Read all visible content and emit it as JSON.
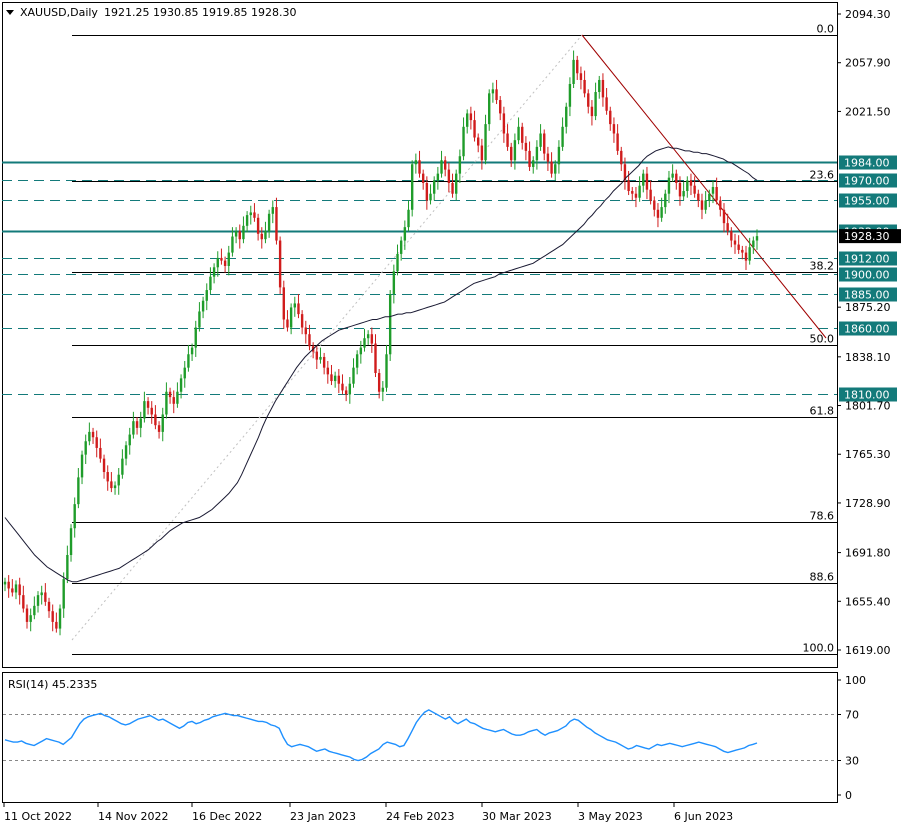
{
  "chart_data": {
    "type": "candlestick",
    "header": {
      "symbol_timeframe": "XAUUSD,Daily",
      "ohlc": "1921.25 1930.85 1919.85 1928.30"
    },
    "price_axis": {
      "ylim": [
        1600,
        2105
      ],
      "ticks": [
        "2094.30",
        "2057.90",
        "2021.50",
        "1875.20",
        "1838.10",
        "1801.70",
        "1765.30",
        "1728.90",
        "1691.80",
        "1655.40",
        "1619.00"
      ]
    },
    "x_axis": {
      "ticks": [
        "11 Oct 2022",
        "14 Nov 2022",
        "16 Dec 2022",
        "23 Jan 2023",
        "24 Feb 2023",
        "30 Mar 2023",
        "3 May 2023",
        "6 Jun 2023"
      ]
    },
    "fibonacci": [
      {
        "label": "0.0",
        "price": 2078.5
      },
      {
        "label": "23.6",
        "price": 1969.2
      },
      {
        "label": "38.2",
        "price": 1901.8
      },
      {
        "label": "50.0",
        "price": 1847.3
      },
      {
        "label": "61.8",
        "price": 1792.8
      },
      {
        "label": "78.6",
        "price": 1715.0
      },
      {
        "label": "88.6",
        "price": 1668.8
      },
      {
        "label": "100.0",
        "price": 1616.2
      }
    ],
    "levels": [
      {
        "label": "1984.00",
        "price": 1984.0,
        "style": "solid"
      },
      {
        "label": "1970.00",
        "price": 1970.0,
        "style": "dashed"
      },
      {
        "label": "1955.00",
        "price": 1955.0,
        "style": "dashed"
      },
      {
        "label": "1932.00",
        "price": 1932.0,
        "style": "solid"
      },
      {
        "label": "1912.00",
        "price": 1912.0,
        "style": "dashed"
      },
      {
        "label": "1900.00",
        "price": 1900.0,
        "style": "dashed"
      },
      {
        "label": "1885.00",
        "price": 1885.0,
        "style": "dashed"
      },
      {
        "label": "1860.00",
        "price": 1860.0,
        "style": "dashed"
      },
      {
        "label": "1810.00",
        "price": 1810.0,
        "style": "dashed"
      }
    ],
    "current_price": "1928.30",
    "close_series": [
      1670,
      1665,
      1662,
      1668,
      1660,
      1650,
      1640,
      1645,
      1652,
      1660,
      1662,
      1655,
      1648,
      1640,
      1635,
      1650,
      1672,
      1690,
      1710,
      1728,
      1748,
      1765,
      1775,
      1782,
      1778,
      1770,
      1762,
      1752,
      1745,
      1740,
      1742,
      1750,
      1762,
      1772,
      1780,
      1790,
      1785,
      1792,
      1805,
      1800,
      1795,
      1787,
      1782,
      1795,
      1812,
      1808,
      1803,
      1812,
      1822,
      1830,
      1840,
      1845,
      1860,
      1872,
      1880,
      1888,
      1898,
      1905,
      1912,
      1910,
      1906,
      1916,
      1928,
      1932,
      1926,
      1936,
      1944,
      1946,
      1942,
      1930,
      1926,
      1932,
      1945,
      1950,
      1925,
      1890,
      1866,
      1860,
      1875,
      1878,
      1870,
      1860,
      1855,
      1846,
      1842,
      1836,
      1838,
      1830,
      1825,
      1820,
      1824,
      1818,
      1813,
      1810,
      1818,
      1830,
      1840,
      1845,
      1852,
      1855,
      1848,
      1826,
      1812,
      1815,
      1840,
      1885,
      1902,
      1915,
      1925,
      1935,
      1948,
      1982,
      1985,
      1975,
      1968,
      1955,
      1960,
      1970,
      1975,
      1985,
      1978,
      1968,
      1960,
      1975,
      1988,
      2010,
      2020,
      2015,
      2002,
      1996,
      1985,
      2012,
      2035,
      2038,
      2030,
      2020,
      2005,
      1995,
      1985,
      2000,
      2010,
      1998,
      1992,
      1980,
      1985,
      1995,
      2005,
      1990,
      1984,
      1975,
      1982,
      1995,
      2010,
      2025,
      2042,
      2060,
      2050,
      2045,
      2035,
      2025,
      2018,
      2036,
      2045,
      2032,
      2022,
      2012,
      2005,
      1992,
      1982,
      1970,
      1962,
      1960,
      1957,
      1966,
      1975,
      1963,
      1955,
      1948,
      1942,
      1950,
      1960,
      1972,
      1975,
      1968,
      1958,
      1962,
      1970,
      1966,
      1960,
      1955,
      1948,
      1955,
      1960,
      1965,
      1955,
      1948,
      1938,
      1932,
      1925,
      1922,
      1918,
      1916,
      1910,
      1920,
      1925,
      1928.3
    ],
    "ma_series": [
      1718,
      1714,
      1710,
      1706,
      1702,
      1698,
      1694,
      1690,
      1687,
      1684,
      1681,
      1679,
      1677,
      1675,
      1673,
      1671,
      1670,
      1670,
      1671,
      1672,
      1673,
      1674,
      1675,
      1676,
      1677,
      1678,
      1679,
      1680,
      1682,
      1684,
      1686,
      1688,
      1690,
      1692,
      1694,
      1697,
      1700,
      1702,
      1705,
      1708,
      1710,
      1712,
      1714,
      1715,
      1716,
      1717,
      1718,
      1720,
      1722,
      1724,
      1727,
      1730,
      1733,
      1736,
      1740,
      1744,
      1750,
      1757,
      1764,
      1771,
      1778,
      1786,
      1793,
      1799,
      1805,
      1810,
      1815,
      1820,
      1825,
      1830,
      1834,
      1838,
      1841,
      1844,
      1847,
      1850,
      1852,
      1854,
      1856,
      1858,
      1859,
      1860,
      1861,
      1862,
      1863,
      1864,
      1865,
      1866,
      1866,
      1867,
      1868,
      1868,
      1869,
      1870,
      1870,
      1871,
      1871,
      1872,
      1873,
      1874,
      1875,
      1876,
      1877,
      1878,
      1879,
      1881,
      1883,
      1885,
      1887,
      1889,
      1891,
      1893,
      1894,
      1895,
      1896,
      1897,
      1898,
      1900,
      1901,
      1902,
      1903,
      1904,
      1905,
      1906,
      1907,
      1908,
      1910,
      1912,
      1914,
      1916,
      1918,
      1920,
      1922,
      1925,
      1928,
      1931,
      1934,
      1937,
      1941,
      1944,
      1948,
      1951,
      1955,
      1958,
      1962,
      1965,
      1968,
      1972,
      1975,
      1978,
      1981,
      1985,
      1988,
      1990,
      1992,
      1993,
      1994,
      1995,
      1994,
      1994,
      1993,
      1992,
      1992,
      1991,
      1991,
      1990,
      1990,
      1989,
      1988,
      1987,
      1986,
      1984,
      1983,
      1981,
      1979,
      1977,
      1975,
      1972,
      1970
    ],
    "rsi": {
      "label": "RSI(14) 45.2335",
      "ylim": [
        0,
        100
      ],
      "ticks": [
        "100",
        "70",
        "30",
        "0"
      ],
      "levels": [
        70,
        30
      ],
      "series": [
        48,
        47,
        46,
        46,
        47,
        45,
        44,
        43,
        45,
        47,
        49,
        48,
        47,
        46,
        44,
        47,
        50,
        56,
        62,
        66,
        68,
        69,
        70,
        71,
        69,
        68,
        66,
        64,
        62,
        61,
        62,
        64,
        66,
        67,
        68,
        69,
        67,
        65,
        66,
        64,
        62,
        60,
        58,
        60,
        63,
        64,
        62,
        63,
        65,
        66,
        68,
        69,
        70,
        71,
        70,
        69,
        69,
        68,
        67,
        66,
        65,
        64,
        64,
        63,
        61,
        60,
        58,
        50,
        44,
        42,
        43,
        44,
        43,
        42,
        40,
        38,
        39,
        40,
        38,
        37,
        36,
        35,
        34,
        33,
        31,
        30,
        31,
        33,
        36,
        38,
        40,
        44,
        46,
        45,
        44,
        42,
        43,
        49,
        56,
        63,
        68,
        72,
        74,
        72,
        70,
        68,
        66,
        68,
        64,
        62,
        64,
        66,
        63,
        62,
        60,
        58,
        57,
        56,
        55,
        56,
        57,
        55,
        53,
        52,
        52,
        53,
        55,
        56,
        57,
        54,
        52,
        54,
        55,
        56,
        58,
        60,
        64,
        66,
        65,
        62,
        59,
        57,
        54,
        52,
        50,
        48,
        47,
        46,
        44,
        42,
        40,
        41,
        43,
        42,
        41,
        40,
        42,
        44,
        43,
        44,
        45,
        44,
        43,
        42,
        43,
        44,
        45,
        46,
        45,
        44,
        43,
        42,
        40,
        38,
        37,
        38,
        39,
        40,
        41,
        43,
        44,
        45.2
      ]
    }
  }
}
